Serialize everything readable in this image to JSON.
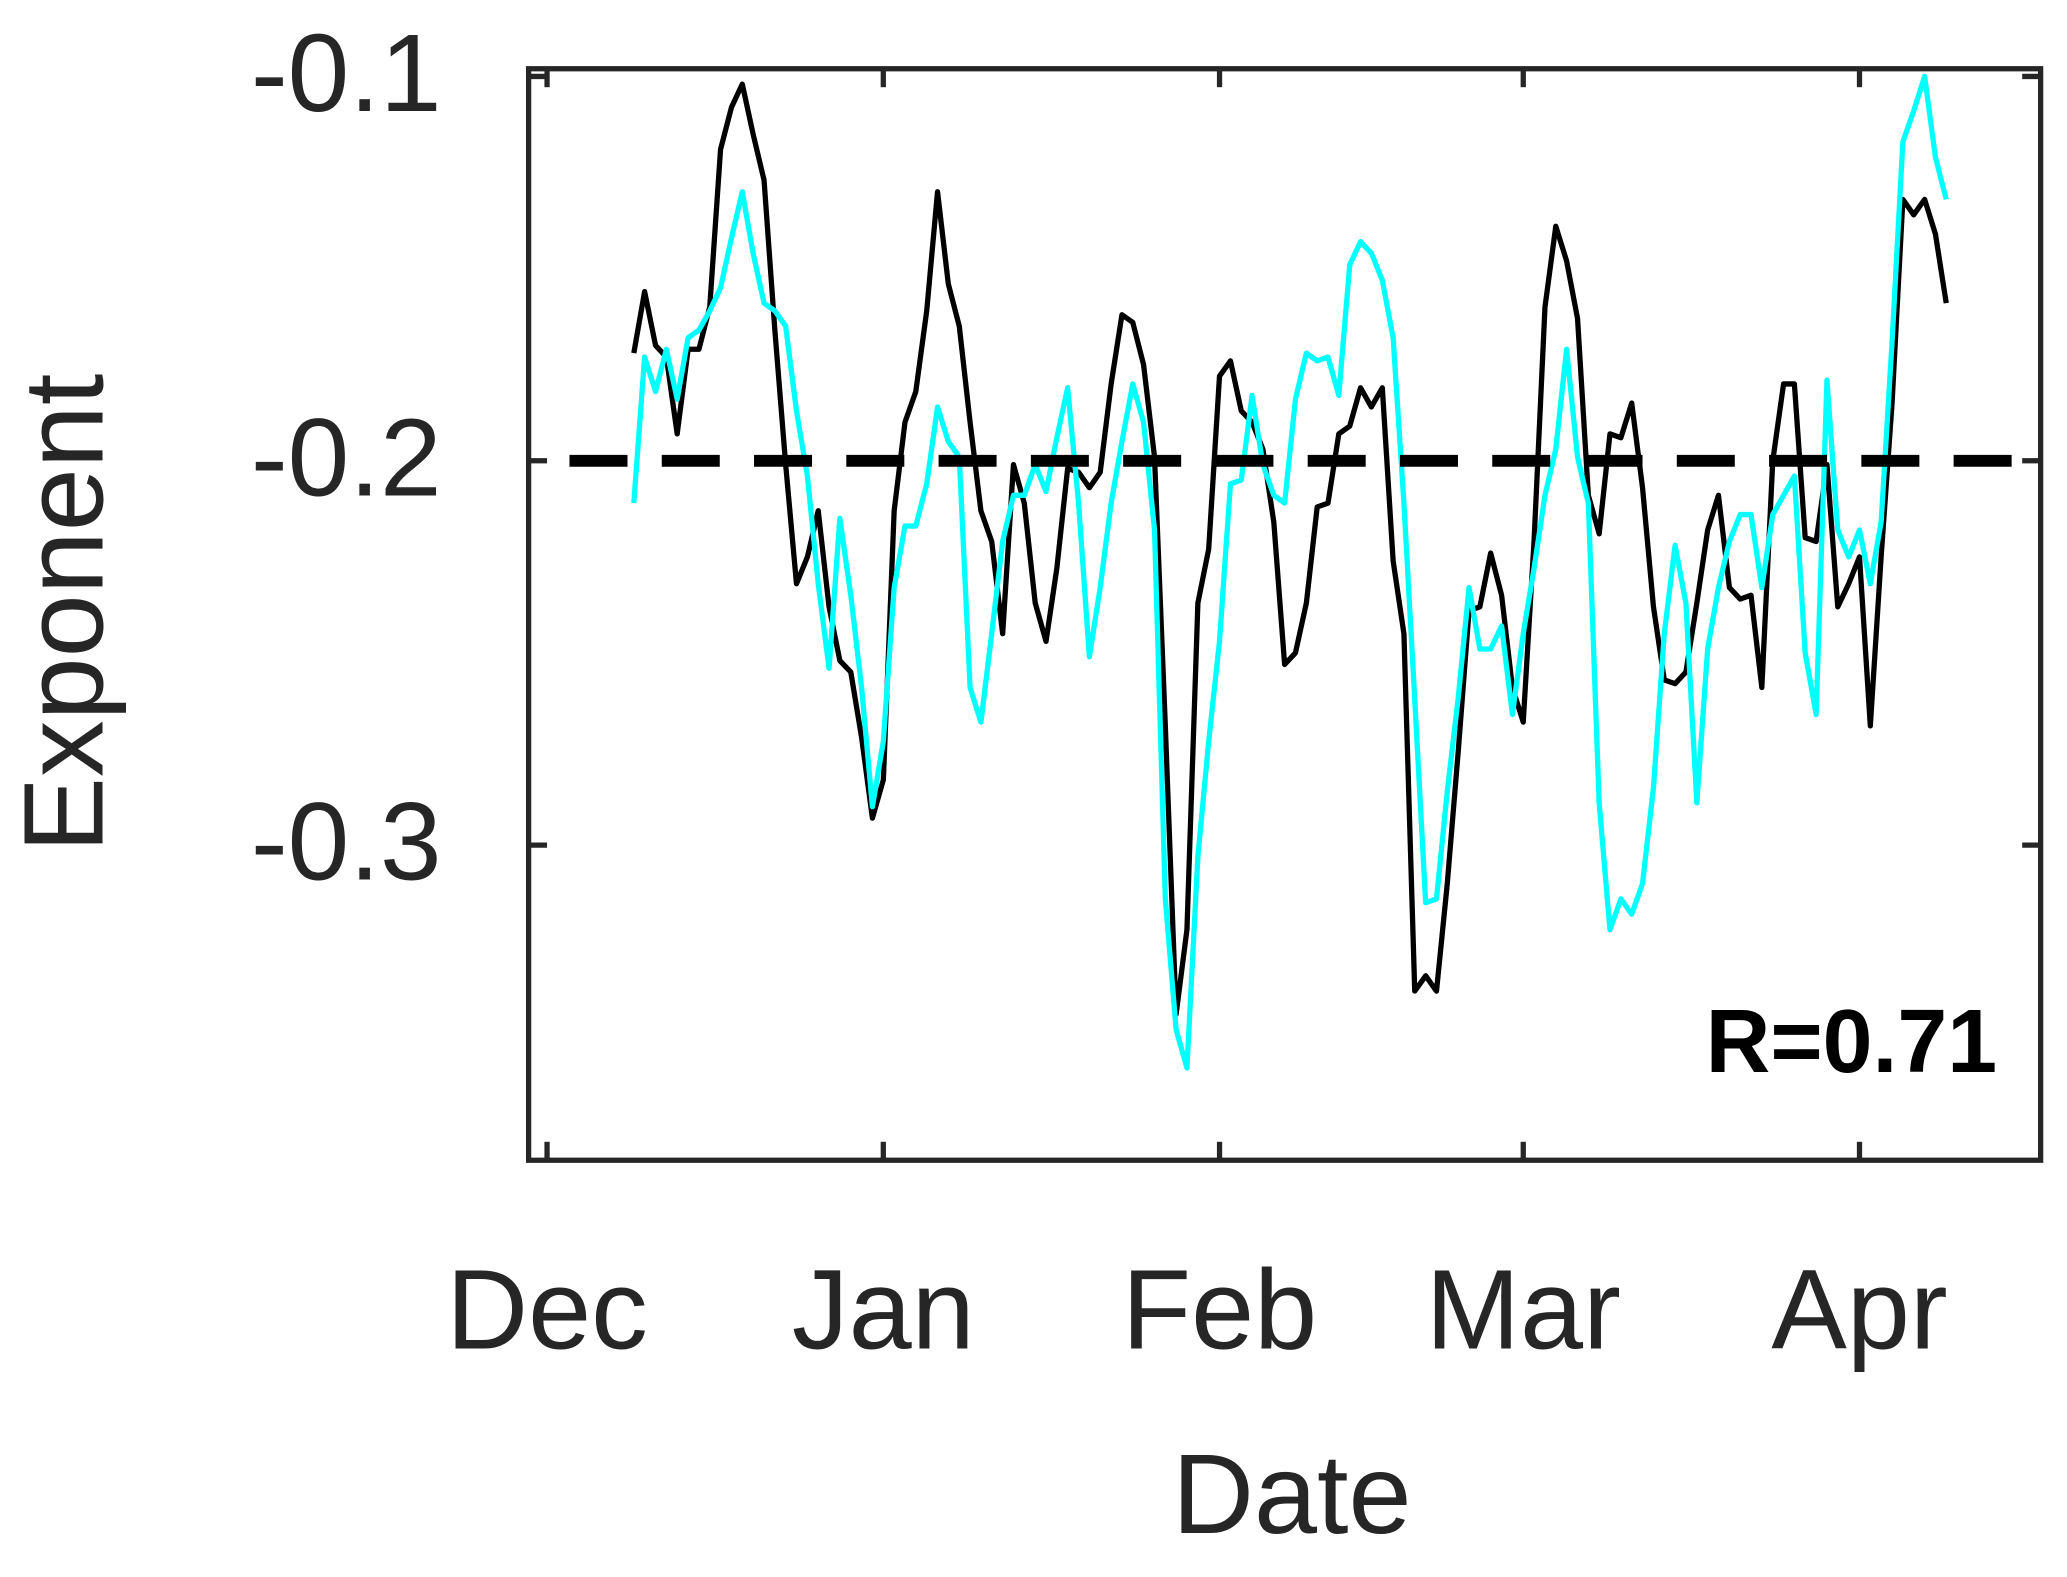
{
  "chart_data": {
    "type": "line",
    "xlabel": "Date",
    "ylabel": "Exponent",
    "annotation": "R=0.71",
    "xlim": [
      -1.7,
      137.7
    ],
    "xticks": [
      {
        "value": 0,
        "label": "Dec"
      },
      {
        "value": 31,
        "label": "Jan"
      },
      {
        "value": 62,
        "label": "Feb"
      },
      {
        "value": 90,
        "label": "Mar"
      },
      {
        "value": 121,
        "label": "Apr"
      }
    ],
    "ylim": [
      -0.382,
      -0.098
    ],
    "yticks": [
      -0.1,
      -0.2,
      -0.3
    ],
    "reference_line": -0.2,
    "x": [
      8,
      9,
      10,
      11,
      12,
      13,
      14,
      15,
      16,
      17,
      18,
      19,
      20,
      21,
      22,
      23,
      24,
      25,
      26,
      27,
      28,
      29,
      30,
      31,
      32,
      33,
      34,
      35,
      36,
      37,
      38,
      39,
      40,
      41,
      42,
      43,
      44,
      45,
      46,
      47,
      48,
      49,
      50,
      51,
      52,
      53,
      54,
      55,
      56,
      57,
      58,
      59,
      60,
      61,
      62,
      63,
      64,
      65,
      66,
      67,
      68,
      69,
      70,
      71,
      72,
      73,
      74,
      75,
      76,
      77,
      78,
      79,
      80,
      81,
      82,
      83,
      84,
      85,
      86,
      87,
      88,
      89,
      90,
      91,
      92,
      93,
      94,
      95,
      96,
      97,
      98,
      99,
      100,
      101,
      102,
      103,
      104,
      105,
      106,
      107,
      108,
      109,
      110,
      111,
      112,
      113,
      114,
      115,
      116,
      117,
      118,
      119,
      120,
      121,
      122,
      123,
      124,
      125,
      126,
      127,
      128,
      129
    ],
    "series": [
      {
        "color": "#000000",
        "values": [
          -0.172,
          -0.156,
          -0.17,
          -0.173,
          -0.193,
          -0.171,
          -0.171,
          -0.16,
          -0.119,
          -0.108,
          -0.102,
          -0.115,
          -0.127,
          -0.166,
          -0.201,
          -0.232,
          -0.225,
          -0.213,
          -0.238,
          -0.252,
          -0.255,
          -0.272,
          -0.293,
          -0.283,
          -0.213,
          -0.19,
          -0.182,
          -0.161,
          -0.13,
          -0.154,
          -0.165,
          -0.19,
          -0.213,
          -0.221,
          -0.245,
          -0.201,
          -0.211,
          -0.237,
          -0.247,
          -0.228,
          -0.202,
          -0.203,
          -0.207,
          -0.203,
          -0.18,
          -0.162,
          -0.164,
          -0.175,
          -0.199,
          -0.269,
          -0.344,
          -0.322,
          -0.237,
          -0.223,
          -0.178,
          -0.174,
          -0.187,
          -0.19,
          -0.197,
          -0.216,
          -0.253,
          -0.25,
          -0.237,
          -0.212,
          -0.211,
          -0.193,
          -0.191,
          -0.181,
          -0.186,
          -0.181,
          -0.226,
          -0.245,
          -0.338,
          -0.334,
          -0.338,
          -0.31,
          -0.276,
          -0.239,
          -0.238,
          -0.224,
          -0.235,
          -0.259,
          -0.268,
          -0.221,
          -0.16,
          -0.139,
          -0.148,
          -0.163,
          -0.209,
          -0.219,
          -0.193,
          -0.194,
          -0.185,
          -0.207,
          -0.238,
          -0.257,
          -0.258,
          -0.255,
          -0.237,
          -0.218,
          -0.209,
          -0.233,
          -0.236,
          -0.235,
          -0.259,
          -0.2,
          -0.18,
          -0.18,
          -0.22,
          -0.221,
          -0.201,
          -0.238,
          -0.232,
          -0.225,
          -0.269,
          -0.225,
          -0.185,
          -0.132,
          -0.136,
          -0.132,
          -0.141,
          -0.159
        ]
      },
      {
        "color": "#00ffff",
        "values": [
          -0.211,
          -0.173,
          -0.182,
          -0.171,
          -0.184,
          -0.168,
          -0.166,
          -0.161,
          -0.155,
          -0.142,
          -0.13,
          -0.146,
          -0.159,
          -0.161,
          -0.165,
          -0.187,
          -0.204,
          -0.232,
          -0.254,
          -0.215,
          -0.235,
          -0.259,
          -0.29,
          -0.273,
          -0.233,
          -0.217,
          -0.217,
          -0.206,
          -0.186,
          -0.195,
          -0.199,
          -0.259,
          -0.268,
          -0.245,
          -0.221,
          -0.209,
          -0.209,
          -0.201,
          -0.208,
          -0.194,
          -0.181,
          -0.211,
          -0.251,
          -0.233,
          -0.211,
          -0.195,
          -0.18,
          -0.19,
          -0.218,
          -0.314,
          -0.348,
          -0.358,
          -0.303,
          -0.273,
          -0.247,
          -0.206,
          -0.205,
          -0.183,
          -0.201,
          -0.209,
          -0.211,
          -0.184,
          -0.172,
          -0.174,
          -0.173,
          -0.183,
          -0.149,
          -0.143,
          -0.146,
          -0.153,
          -0.168,
          -0.211,
          -0.262,
          -0.315,
          -0.314,
          -0.286,
          -0.262,
          -0.233,
          -0.249,
          -0.249,
          -0.243,
          -0.266,
          -0.245,
          -0.228,
          -0.209,
          -0.197,
          -0.171,
          -0.199,
          -0.211,
          -0.289,
          -0.322,
          -0.314,
          -0.318,
          -0.31,
          -0.285,
          -0.245,
          -0.222,
          -0.237,
          -0.289,
          -0.249,
          -0.233,
          -0.221,
          -0.214,
          -0.214,
          -0.233,
          -0.214,
          -0.209,
          -0.204,
          -0.25,
          -0.266,
          -0.179,
          -0.218,
          -0.225,
          -0.218,
          -0.232,
          -0.216,
          -0.169,
          -0.117,
          -0.109,
          -0.1,
          -0.121,
          -0.132
        ]
      }
    ]
  }
}
